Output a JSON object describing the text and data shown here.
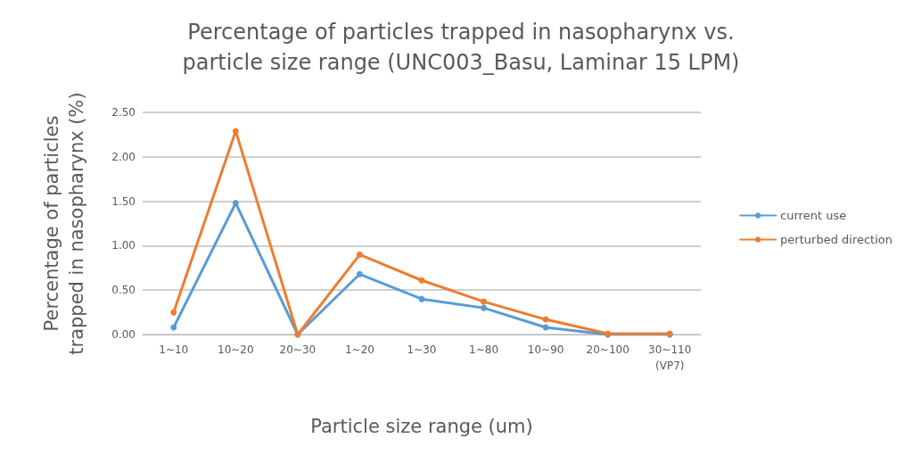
{
  "chart_data": {
    "type": "line",
    "title": "Percentage of particles trapped in nasopharynx vs.\nparticle size range (UNC003_Basu, Laminar 15 LPM)",
    "xlabel": "Particle size range (um)",
    "ylabel": "Percentage of particles\ntrapped in nasopharynx (%)",
    "categories": [
      "1~10",
      "10~20",
      "20~30",
      "1~20",
      "1~30",
      "1~80",
      "10~90",
      "20~100",
      "30~110\n(VP7)"
    ],
    "series": [
      {
        "name": "current use",
        "color": "#5b9bd5",
        "values": [
          0.08,
          1.48,
          0.0,
          0.68,
          0.4,
          0.3,
          0.08,
          0.0,
          0.0
        ]
      },
      {
        "name": "perturbed direction",
        "color": "#ed7d31",
        "values": [
          0.25,
          2.29,
          0.0,
          0.9,
          0.61,
          0.37,
          0.17,
          0.01,
          0.01
        ]
      }
    ],
    "ylim": [
      0,
      2.5
    ],
    "yticks": [
      {
        "value": 0,
        "label": "0.00"
      },
      {
        "value": 0.5,
        "label": "0.50"
      },
      {
        "value": 1,
        "label": "1.00"
      },
      {
        "value": 1.5,
        "label": "1.50"
      },
      {
        "value": 2,
        "label": "2.00"
      },
      {
        "value": 2.5,
        "label": "2.50"
      }
    ],
    "grid": "y",
    "legend": "right",
    "marker": "circle",
    "line_style": "solid"
  }
}
